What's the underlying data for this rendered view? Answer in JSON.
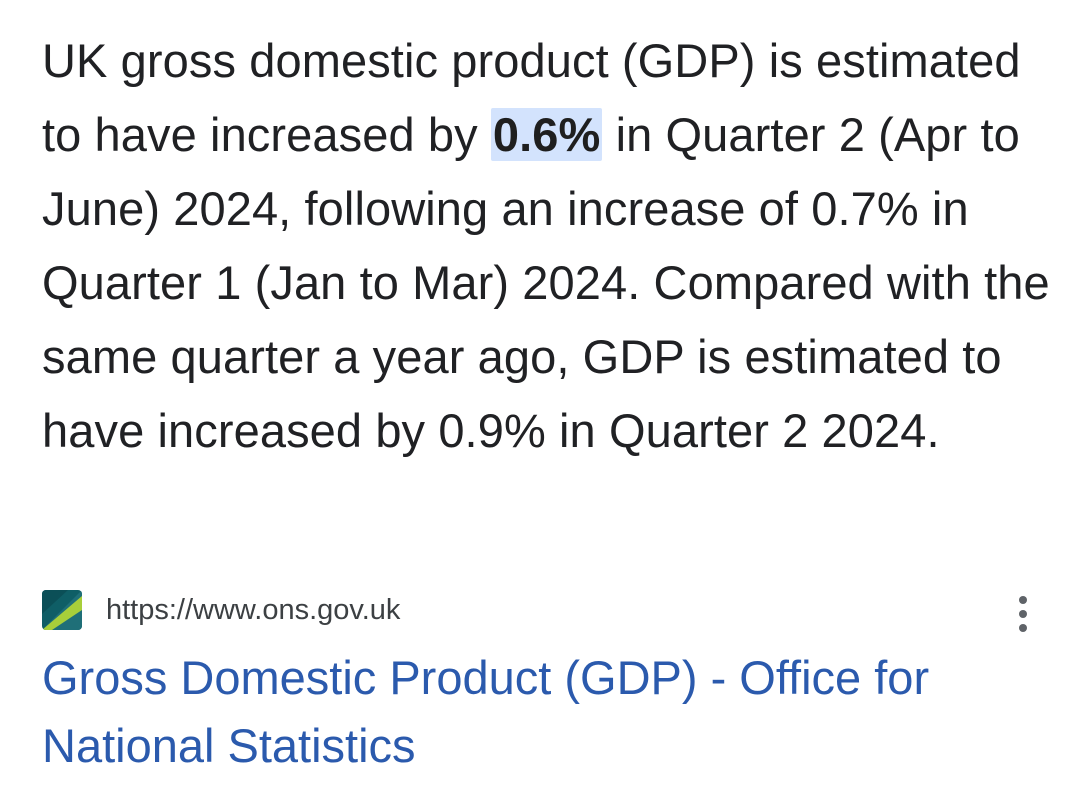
{
  "snippet": {
    "text_before": "UK gross domestic product (GDP) is estimated to have increased by ",
    "highlight": "0.6%",
    "text_after": " in Quarter 2 (Apr to June) 2024, following an increase of 0.7% in Quarter 1 (Jan to Mar) 2024. Compared with the same quarter a year ago, GDP is estimated to have increased by 0.9% in Quarter 2 2024."
  },
  "source": {
    "url": "https://www.ons.gov.uk",
    "favicon_icon": "ons-logo-icon",
    "menu_icon": "more-vert-icon"
  },
  "result": {
    "title": "Gross Domestic Product (GDP) - Office for National Statistics"
  },
  "colors": {
    "link": "#2b5aad",
    "highlight_bg": "#d3e3fd",
    "text": "#202124"
  }
}
